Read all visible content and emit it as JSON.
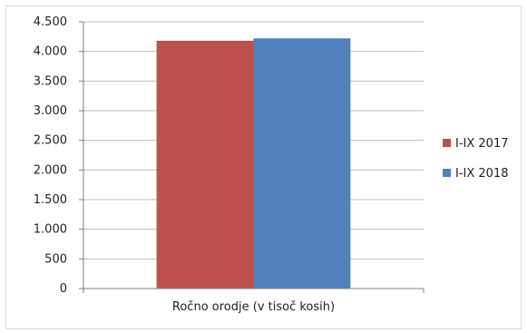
{
  "chart_data": {
    "type": "bar",
    "categories": [
      "Ročno orodje (v tisoč kosih)"
    ],
    "series": [
      {
        "name": "I-IX 2017",
        "values": [
          4180
        ],
        "color": "#c0504d"
      },
      {
        "name": "I-IX 2018",
        "values": [
          4220
        ],
        "color": "#4f81bd"
      }
    ],
    "ylim": [
      0,
      4500
    ],
    "yticks": [
      0,
      500,
      1000,
      1500,
      2000,
      2500,
      3000,
      3500,
      4000,
      4500
    ],
    "ytick_labels": [
      "0",
      "500",
      "1.000",
      "1.500",
      "2.000",
      "2.500",
      "3.000",
      "3.500",
      "4.000",
      "4.500"
    ],
    "grid": true,
    "legend": "right",
    "title": "",
    "xlabel": "",
    "ylabel": ""
  }
}
